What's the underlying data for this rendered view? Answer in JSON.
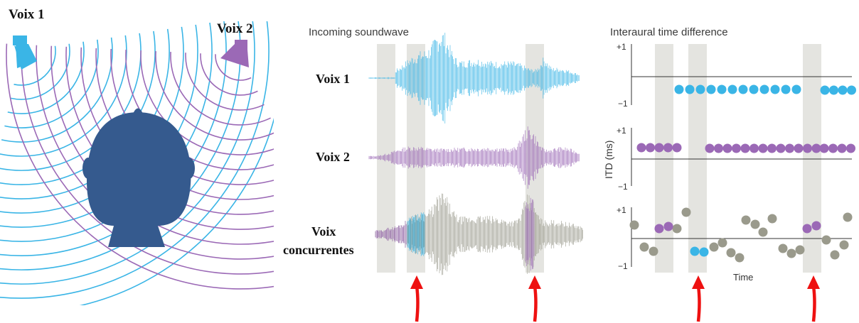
{
  "diagram": {
    "speaker_labels": {
      "voice1": "Voix 1",
      "voice2": "Voix 2"
    },
    "waveform_panel": {
      "title": "Incoming soundwave",
      "rows": [
        {
          "label": "Voix 1"
        },
        {
          "label": "Voix 2"
        },
        {
          "label_line1": "Voix",
          "label_line2": "concurrentes"
        }
      ]
    },
    "itd_panel": {
      "title": "Interaural time difference",
      "ylabel": "ITD (ms)",
      "xlabel": "Time",
      "tick_top": "+1",
      "tick_bottom": "−1"
    },
    "colors": {
      "voice1": "#3ab5e6",
      "voice2": "#9b69b6",
      "mixed": "#9a9a8c",
      "head": "#355a8e",
      "highlight_band": "#e4e4e0",
      "arrow": "#ee1111"
    }
  }
}
